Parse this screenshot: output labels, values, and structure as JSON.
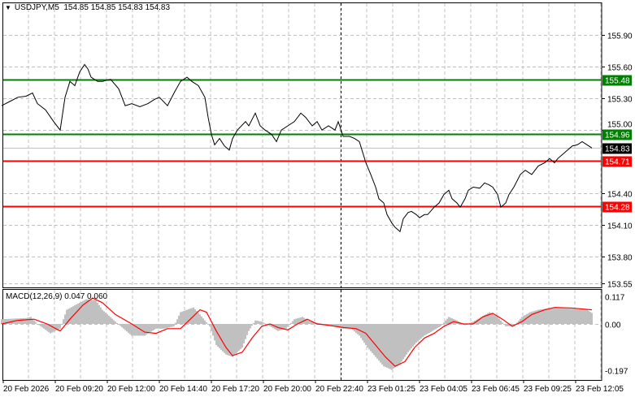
{
  "header": {
    "symbol": "USDJPY,M5",
    "open": "154.85",
    "high": "154.85",
    "low": "154.83",
    "close": "154.83",
    "menu_icon": "triangle-down-icon"
  },
  "colors": {
    "support_resistance_green": "#008000",
    "support_resistance_red": "#ff0000",
    "price_line": "#000000",
    "macd_histogram": "#c0c0c0",
    "macd_signal": "#ff0000",
    "current_price_label": "#000000"
  },
  "chart_data": [
    {
      "type": "line",
      "title": "USDJPY,M5",
      "ylim": [
        153.55,
        156.12
      ],
      "y_ticks": [
        "155.90",
        "155.60",
        "155.30",
        "155.00",
        "154.40",
        "154.10",
        "153.80",
        "153.55"
      ],
      "y_tick_values": [
        155.9,
        155.6,
        155.3,
        155.0,
        154.4,
        154.1,
        153.8,
        153.55
      ],
      "x_ticks": [
        "20 Feb 2026",
        "20 Feb 09:20",
        "20 Feb 12:00",
        "20 Feb 14:40",
        "20 Feb 17:20",
        "20 Feb 20:00",
        "20 Feb 22:40",
        "23 Feb 01:25",
        "23 Feb 04:05",
        "23 Feb 06:45",
        "23 Feb 09:25",
        "23 Feb 12:05"
      ],
      "grid": true,
      "levels": [
        {
          "value": 155.48,
          "label": "155.48",
          "color": "#008000"
        },
        {
          "value": 154.96,
          "label": "154.96",
          "color": "#008000"
        },
        {
          "value": 154.71,
          "label": "154.71",
          "color": "#ff0000"
        },
        {
          "value": 154.28,
          "label": "154.28",
          "color": "#ff0000"
        }
      ],
      "current_price": {
        "value": 154.83,
        "label": "154.83"
      },
      "x_unit": "bar",
      "points": [
        [
          0,
          155.23
        ],
        [
          5,
          155.27
        ],
        [
          10,
          155.31
        ],
        [
          15,
          155.32
        ],
        [
          19,
          155.35
        ],
        [
          22,
          155.25
        ],
        [
          27,
          155.19
        ],
        [
          32,
          155.08
        ],
        [
          36,
          155.0
        ],
        [
          39,
          155.31
        ],
        [
          42,
          155.46
        ],
        [
          45,
          155.42
        ],
        [
          48,
          155.55
        ],
        [
          51,
          155.62
        ],
        [
          53,
          155.58
        ],
        [
          55,
          155.5
        ],
        [
          59,
          155.46
        ],
        [
          62,
          155.46
        ],
        [
          67,
          155.48
        ],
        [
          72,
          155.39
        ],
        [
          76,
          155.23
        ],
        [
          80,
          155.25
        ],
        [
          85,
          155.22
        ],
        [
          90,
          155.25
        ],
        [
          94,
          155.29
        ],
        [
          97,
          155.31
        ],
        [
          102,
          155.23
        ],
        [
          106,
          155.35
        ],
        [
          110,
          155.46
        ],
        [
          114,
          155.5
        ],
        [
          117,
          155.46
        ],
        [
          121,
          155.42
        ],
        [
          125,
          155.31
        ],
        [
          127,
          155.12
        ],
        [
          129,
          154.96
        ],
        [
          131,
          154.86
        ],
        [
          134,
          154.92
        ],
        [
          137,
          154.85
        ],
        [
          140,
          154.81
        ],
        [
          142,
          154.92
        ],
        [
          145,
          155.0
        ],
        [
          150,
          155.08
        ],
        [
          152,
          155.04
        ],
        [
          156,
          155.16
        ],
        [
          159,
          155.04
        ],
        [
          162,
          155.0
        ],
        [
          166,
          154.96
        ],
        [
          169,
          154.89
        ],
        [
          172,
          155.0
        ],
        [
          176,
          155.04
        ],
        [
          180,
          155.08
        ],
        [
          184,
          155.16
        ],
        [
          187,
          155.12
        ],
        [
          191,
          155.04
        ],
        [
          194,
          155.08
        ],
        [
          197,
          155.0
        ],
        [
          201,
          155.04
        ],
        [
          205,
          155.0
        ],
        [
          207,
          155.08
        ],
        [
          210,
          154.94
        ],
        [
          214,
          154.94
        ],
        [
          217,
          154.92
        ],
        [
          220,
          154.89
        ],
        [
          224,
          154.69
        ],
        [
          227,
          154.58
        ],
        [
          230,
          154.46
        ],
        [
          232,
          154.35
        ],
        [
          235,
          154.31
        ],
        [
          237,
          154.2
        ],
        [
          240,
          154.12
        ],
        [
          242,
          154.08
        ],
        [
          245,
          154.04
        ],
        [
          247,
          154.16
        ],
        [
          250,
          154.22
        ],
        [
          252,
          154.23
        ],
        [
          255,
          154.2
        ],
        [
          257,
          154.17
        ],
        [
          260,
          154.2
        ],
        [
          262,
          154.2
        ],
        [
          266,
          154.27
        ],
        [
          269,
          154.31
        ],
        [
          272,
          154.39
        ],
        [
          275,
          154.43
        ],
        [
          277,
          154.35
        ],
        [
          280,
          154.31
        ],
        [
          282,
          154.27
        ],
        [
          285,
          154.35
        ],
        [
          287,
          154.43
        ],
        [
          290,
          154.46
        ],
        [
          294,
          154.45
        ],
        [
          297,
          154.5
        ],
        [
          300,
          154.48
        ],
        [
          302,
          154.46
        ],
        [
          305,
          154.39
        ],
        [
          307,
          154.27
        ],
        [
          310,
          154.31
        ],
        [
          312,
          154.39
        ],
        [
          315,
          154.46
        ],
        [
          319,
          154.58
        ],
        [
          322,
          154.62
        ],
        [
          326,
          154.58
        ],
        [
          330,
          154.66
        ],
        [
          334,
          154.69
        ],
        [
          337,
          154.73
        ],
        [
          340,
          154.69
        ],
        [
          342,
          154.73
        ],
        [
          345,
          154.77
        ],
        [
          348,
          154.81
        ],
        [
          351,
          154.85
        ],
        [
          354,
          154.86
        ],
        [
          357,
          154.89
        ],
        [
          361,
          154.85
        ],
        [
          363,
          154.83
        ]
      ]
    },
    {
      "type": "bar",
      "title": "MACD(12,26,9) 0.047 0.060",
      "ylim": [
        -0.215,
        0.15
      ],
      "y_ticks": [
        "0.117",
        "0.00",
        "-0.197"
      ],
      "y_tick_values": [
        0.117,
        0,
        -0.197
      ],
      "x_unit": "bar",
      "series": [
        {
          "kind": "histogram",
          "points": [
            [
              0,
              0.02
            ],
            [
              15,
              0.025
            ],
            [
              18,
              0.03
            ],
            [
              22,
              0.0
            ],
            [
              30,
              -0.04
            ],
            [
              36,
              -0.02
            ],
            [
              40,
              0.06
            ],
            [
              48,
              0.09
            ],
            [
              52,
              0.105
            ],
            [
              58,
              0.1
            ],
            [
              62,
              0.06
            ],
            [
              70,
              0.01
            ],
            [
              75,
              -0.02
            ],
            [
              80,
              -0.05
            ],
            [
              88,
              -0.05
            ],
            [
              95,
              -0.02
            ],
            [
              100,
              -0.02
            ],
            [
              106,
              -0.01
            ],
            [
              110,
              0.05
            ],
            [
              118,
              0.07
            ],
            [
              122,
              0.04
            ],
            [
              128,
              -0.01
            ],
            [
              132,
              -0.09
            ],
            [
              138,
              -0.13
            ],
            [
              142,
              -0.14
            ],
            [
              148,
              -0.1
            ],
            [
              152,
              -0.03
            ],
            [
              156,
              0.015
            ],
            [
              160,
              0.01
            ],
            [
              165,
              -0.01
            ],
            [
              170,
              -0.03
            ],
            [
              175,
              -0.02
            ],
            [
              180,
              0.02
            ],
            [
              185,
              0.03
            ],
            [
              190,
              0.01
            ],
            [
              198,
              0.0
            ],
            [
              205,
              -0.01
            ],
            [
              210,
              -0.02
            ],
            [
              215,
              -0.02
            ],
            [
              220,
              -0.05
            ],
            [
              225,
              -0.1
            ],
            [
              230,
              -0.14
            ],
            [
              235,
              -0.18
            ],
            [
              240,
              -0.195
            ],
            [
              245,
              -0.17
            ],
            [
              250,
              -0.12
            ],
            [
              255,
              -0.08
            ],
            [
              260,
              -0.05
            ],
            [
              265,
              -0.03
            ],
            [
              270,
              -0.01
            ],
            [
              275,
              0.03
            ],
            [
              280,
              0.015
            ],
            [
              285,
              -0.005
            ],
            [
              290,
              0.01
            ],
            [
              295,
              0.03
            ],
            [
              300,
              0.05
            ],
            [
              305,
              0.03
            ],
            [
              310,
              -0.01
            ],
            [
              315,
              -0.01
            ],
            [
              320,
              0.03
            ],
            [
              325,
              0.05
            ],
            [
              330,
              0.06
            ],
            [
              335,
              0.065
            ],
            [
              340,
              0.07
            ],
            [
              350,
              0.065
            ],
            [
              360,
              0.06
            ],
            [
              363,
              0.047
            ]
          ]
        },
        {
          "kind": "signal",
          "points": [
            [
              0,
              0.0
            ],
            [
              10,
              0.015
            ],
            [
              20,
              0.02
            ],
            [
              28,
              0.0
            ],
            [
              36,
              -0.03
            ],
            [
              42,
              0.02
            ],
            [
              50,
              0.08
            ],
            [
              56,
              0.11
            ],
            [
              62,
              0.09
            ],
            [
              70,
              0.04
            ],
            [
              80,
              0.0
            ],
            [
              88,
              -0.035
            ],
            [
              95,
              -0.04
            ],
            [
              102,
              -0.02
            ],
            [
              110,
              -0.02
            ],
            [
              116,
              0.02
            ],
            [
              122,
              0.06
            ],
            [
              126,
              0.05
            ],
            [
              132,
              -0.03
            ],
            [
              138,
              -0.1
            ],
            [
              142,
              -0.135
            ],
            [
              148,
              -0.12
            ],
            [
              154,
              -0.06
            ],
            [
              160,
              -0.01
            ],
            [
              165,
              0.0
            ],
            [
              170,
              -0.015
            ],
            [
              176,
              -0.025
            ],
            [
              182,
              0.0
            ],
            [
              188,
              0.02
            ],
            [
              194,
              0.0
            ],
            [
              200,
              -0.005
            ],
            [
              210,
              -0.015
            ],
            [
              218,
              -0.02
            ],
            [
              224,
              -0.04
            ],
            [
              230,
              -0.09
            ],
            [
              236,
              -0.14
            ],
            [
              242,
              -0.18
            ],
            [
              248,
              -0.16
            ],
            [
              254,
              -0.1
            ],
            [
              260,
              -0.06
            ],
            [
              266,
              -0.04
            ],
            [
              272,
              -0.01
            ],
            [
              278,
              0.01
            ],
            [
              284,
              0.0
            ],
            [
              290,
              0.0
            ],
            [
              296,
              0.03
            ],
            [
              302,
              0.045
            ],
            [
              308,
              0.02
            ],
            [
              314,
              -0.01
            ],
            [
              320,
              0.01
            ],
            [
              326,
              0.04
            ],
            [
              334,
              0.06
            ],
            [
              340,
              0.07
            ],
            [
              350,
              0.068
            ],
            [
              363,
              0.06
            ]
          ]
        }
      ]
    }
  ]
}
